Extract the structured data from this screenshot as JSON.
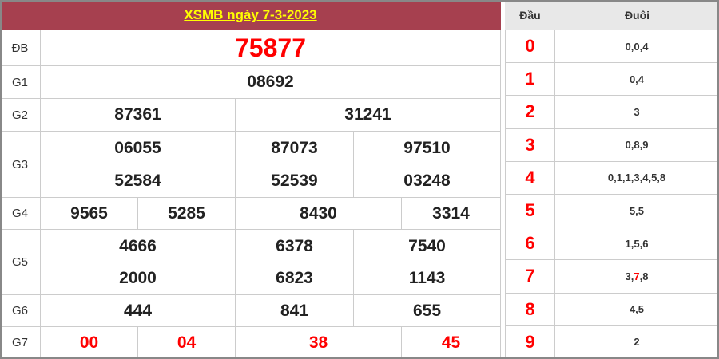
{
  "title": "XSMB ngày 7-3-2023",
  "prizes": {
    "db": {
      "label": "ĐB",
      "values": [
        "75877"
      ]
    },
    "g1": {
      "label": "G1",
      "values": [
        "08692"
      ]
    },
    "g2": {
      "label": "G2",
      "values": [
        "87361",
        "31241"
      ]
    },
    "g3": {
      "label": "G3",
      "values": [
        "06055",
        "87073",
        "97510",
        "52584",
        "52539",
        "03248"
      ]
    },
    "g4": {
      "label": "G4",
      "values": [
        "9565",
        "5285",
        "8430",
        "3314"
      ]
    },
    "g5": {
      "label": "G5",
      "values": [
        "4666",
        "6378",
        "7540",
        "2000",
        "6823",
        "1143"
      ]
    },
    "g6": {
      "label": "G6",
      "values": [
        "444",
        "841",
        "655"
      ]
    },
    "g7": {
      "label": "G7",
      "values": [
        "00",
        "04",
        "38",
        "45"
      ]
    }
  },
  "loto": {
    "header_dau": "Đầu",
    "header_duoi": "Đuôi",
    "rows": [
      {
        "dau": "0",
        "duoi": "0,0,4"
      },
      {
        "dau": "1",
        "duoi": "0,4"
      },
      {
        "dau": "2",
        "duoi": "3"
      },
      {
        "dau": "3",
        "duoi": "0,8,9"
      },
      {
        "dau": "4",
        "duoi": "0,1,1,3,4,5,8"
      },
      {
        "dau": "5",
        "duoi": "5,5"
      },
      {
        "dau": "6",
        "duoi": "1,5,6"
      },
      {
        "dau": "7",
        "duoi_parts": [
          "3,",
          "7",
          ",8"
        ]
      },
      {
        "dau": "8",
        "duoi": "4,5"
      },
      {
        "dau": "9",
        "duoi": "2"
      }
    ]
  },
  "colors": {
    "header_bg": "#a6404f",
    "title": "#ffff00",
    "highlight": "#ff0000"
  }
}
